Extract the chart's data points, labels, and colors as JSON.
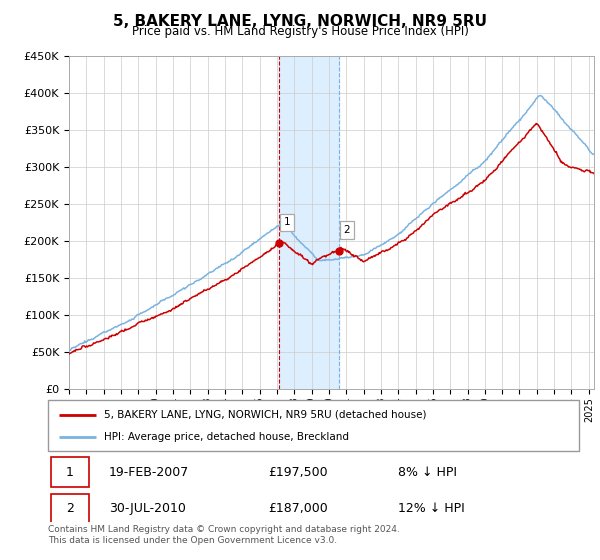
{
  "title": "5, BAKERY LANE, LYNG, NORWICH, NR9 5RU",
  "subtitle": "Price paid vs. HM Land Registry's House Price Index (HPI)",
  "hpi_label": "HPI: Average price, detached house, Breckland",
  "property_label": "5, BAKERY LANE, LYNG, NORWICH, NR9 5RU (detached house)",
  "sale1_date": "19-FEB-2007",
  "sale1_price": 197500,
  "sale1_pct": "8% ↓ HPI",
  "sale2_date": "30-JUL-2010",
  "sale2_price": 187000,
  "sale2_pct": "12% ↓ HPI",
  "copyright": "Contains HM Land Registry data © Crown copyright and database right 2024.\nThis data is licensed under the Open Government Licence v3.0.",
  "ylim": [
    0,
    450000
  ],
  "yticks": [
    0,
    50000,
    100000,
    150000,
    200000,
    250000,
    300000,
    350000,
    400000,
    450000
  ],
  "ytick_labels": [
    "£0",
    "£50K",
    "£100K",
    "£150K",
    "£200K",
    "£250K",
    "£300K",
    "£350K",
    "£400K",
    "£450K"
  ],
  "hpi_color": "#7ab3e0",
  "property_color": "#cc0000",
  "sale1_x": 2007.13,
  "sale2_x": 2010.58,
  "background_color": "#ffffff",
  "grid_color": "#cccccc",
  "span_color": "#ddeeff",
  "xlim_start": 1995,
  "xlim_end": 2025.3
}
